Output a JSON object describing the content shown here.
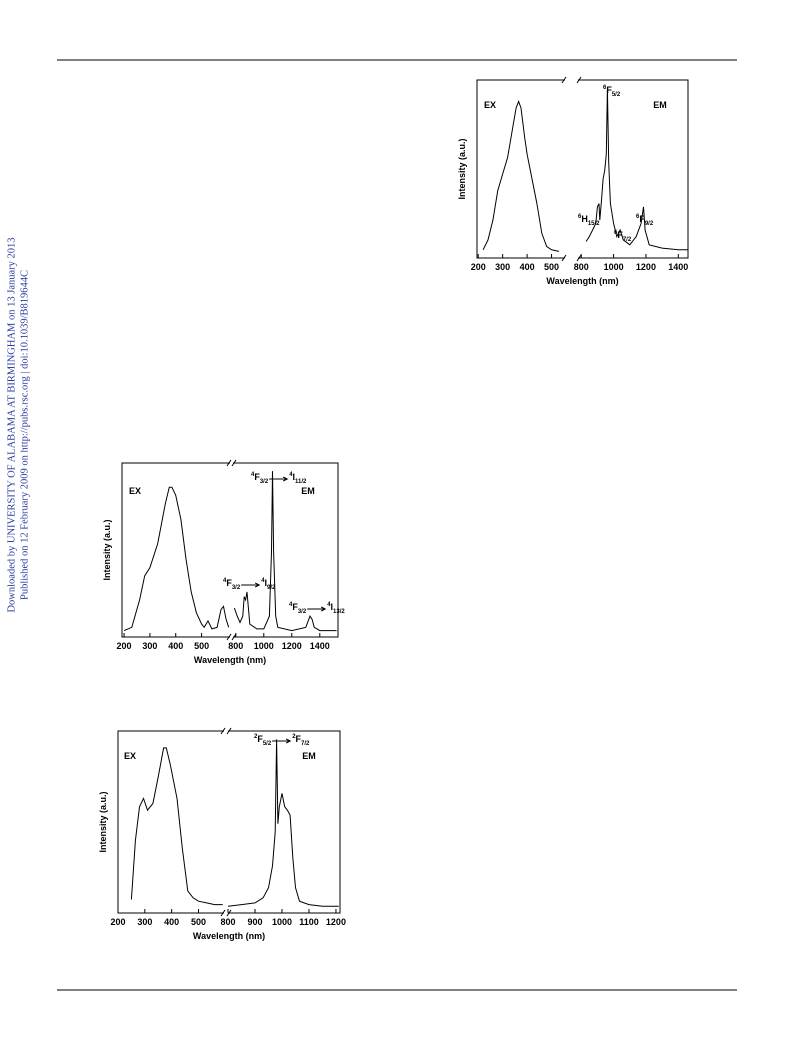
{
  "margin_note": [
    "Downloaded by UNIVERSITY OF ALABAMA AT BIRMINGHAM on 13 January 2013",
    "Published on 12 February 2009 on http://pubs.rsc.org | doi:10.1039/B819644C"
  ],
  "chart_data": [
    {
      "type": "line",
      "xlabel": "Wavelength (nm)",
      "ylabel": "Intensity (a.u.)",
      "ylim": [
        -3,
        105
      ],
      "xlim": [
        195,
        555
      ],
      "xticks": [
        200,
        300,
        400,
        500
      ],
      "x2lim": [
        780,
        1460
      ],
      "x2ticks": [
        800,
        1000,
        1200,
        1400
      ],
      "series": [
        {
          "name": "EX",
          "color": "#000000",
          "x": [
            220,
            240,
            260,
            280,
            300,
            320,
            340,
            355,
            365,
            375,
            390,
            400,
            420,
            440,
            460,
            480,
            500,
            530
          ],
          "values": [
            2,
            8,
            20,
            38,
            48,
            58,
            75,
            88,
            92,
            88,
            70,
            60,
            45,
            30,
            12,
            4,
            2,
            1
          ]
        },
        {
          "name": "EM",
          "axis": "x2",
          "color": "#000000",
          "x": [
            830,
            850,
            870,
            890,
            900,
            910,
            915,
            925,
            935,
            945,
            955,
            962,
            970,
            980,
            1000,
            1020,
            1040,
            1060,
            1100,
            1140,
            1170,
            1185,
            1195,
            1220,
            1300,
            1400,
            1460
          ],
          "values": [
            7,
            10,
            14,
            18,
            28,
            30,
            20,
            32,
            45,
            50,
            60,
            100,
            55,
            30,
            18,
            10,
            14,
            8,
            5,
            10,
            18,
            28,
            14,
            5,
            3,
            2,
            2
          ]
        }
      ],
      "annotations": [
        {
          "terms": [
            {
              "sup": "6",
              "base": "F",
              "sub": "5/2"
            }
          ]
        },
        {
          "terms": [
            {
              "sup": "6",
              "base": "H",
              "sub": "15/2"
            }
          ]
        },
        {
          "terms": [
            {
              "sup": "6",
              "base": "F",
              "sub": "7/2"
            }
          ]
        },
        {
          "terms": [
            {
              "sup": "6",
              "base": "F",
              "sub": "9/2"
            }
          ]
        }
      ]
    },
    {
      "type": "line",
      "xlabel": "Wavelength (nm)",
      "ylabel": "Intensity (a.u.)",
      "ylim": [
        -3,
        105
      ],
      "xlim": [
        192,
        610
      ],
      "xticks": [
        200,
        300,
        400,
        500
      ],
      "x2lim": [
        780,
        1530
      ],
      "x2ticks": [
        800,
        1000,
        1200,
        1400
      ],
      "series": [
        {
          "name": "EX",
          "color": "#000000",
          "x": [
            200,
            230,
            260,
            280,
            300,
            330,
            360,
            375,
            385,
            400,
            420,
            440,
            460,
            480,
            500,
            510,
            525,
            540,
            560,
            575,
            585,
            595,
            605
          ],
          "values": [
            1,
            3,
            20,
            35,
            40,
            55,
            80,
            90,
            90,
            85,
            70,
            45,
            25,
            12,
            5,
            3,
            7,
            2,
            3,
            14,
            16,
            8,
            3
          ]
        },
        {
          "name": "EM",
          "axis": "x2",
          "color": "#000000",
          "x": [
            790,
            810,
            830,
            850,
            860,
            870,
            880,
            890,
            900,
            950,
            1000,
            1040,
            1055,
            1062,
            1070,
            1085,
            1100,
            1200,
            1300,
            1330,
            1345,
            1360,
            1400,
            1520
          ],
          "values": [
            15,
            10,
            6,
            10,
            22,
            20,
            25,
            15,
            5,
            2,
            2,
            10,
            50,
            100,
            50,
            10,
            3,
            1,
            3,
            10,
            8,
            3,
            1,
            1
          ]
        }
      ],
      "annotations": [
        {
          "terms": [
            {
              "sup": "4",
              "base": "F",
              "sub": "3/2"
            },
            {
              "sup": "4",
              "base": "I",
              "sub": "11/2"
            }
          ]
        },
        {
          "terms": [
            {
              "sup": "4",
              "base": "F",
              "sub": "3/2"
            },
            {
              "sup": "4",
              "base": "I",
              "sub": "9/2"
            }
          ]
        },
        {
          "terms": [
            {
              "sup": "4",
              "base": "F",
              "sub": "3/2"
            },
            {
              "sup": "4",
              "base": "I",
              "sub": "13/2"
            }
          ]
        }
      ]
    },
    {
      "type": "line",
      "xlabel": "Wavelength (nm)",
      "ylabel": "Intensity (a.u.)",
      "ylim": [
        -3,
        105
      ],
      "xlim": [
        200,
        595
      ],
      "xticks": [
        200,
        300,
        400,
        500
      ],
      "x2lim": [
        800,
        1215
      ],
      "x2ticks": [
        800,
        900,
        1000,
        1100,
        1200
      ],
      "series": [
        {
          "name": "EX",
          "color": "#000000",
          "x": [
            250,
            265,
            280,
            295,
            310,
            330,
            350,
            370,
            380,
            395,
            420,
            440,
            460,
            480,
            500,
            530,
            560,
            590
          ],
          "values": [
            5,
            40,
            60,
            65,
            58,
            62,
            78,
            95,
            95,
            85,
            65,
            35,
            10,
            6,
            4,
            3,
            2,
            2
          ]
        },
        {
          "name": "EM",
          "axis": "x2",
          "color": "#000000",
          "x": [
            800,
            850,
            900,
            930,
            950,
            965,
            975,
            980,
            985,
            990,
            1000,
            1010,
            1020,
            1030,
            1040,
            1050,
            1065,
            1100,
            1150,
            1210
          ],
          "values": [
            1,
            2,
            3,
            6,
            12,
            25,
            45,
            100,
            50,
            60,
            68,
            60,
            58,
            55,
            30,
            12,
            4,
            2,
            1,
            1
          ]
        }
      ],
      "annotations": [
        {
          "terms": [
            {
              "sup": "2",
              "base": "F",
              "sub": "5/2"
            },
            {
              "sup": "2",
              "base": "F",
              "sub": "7/2"
            }
          ]
        }
      ]
    }
  ]
}
